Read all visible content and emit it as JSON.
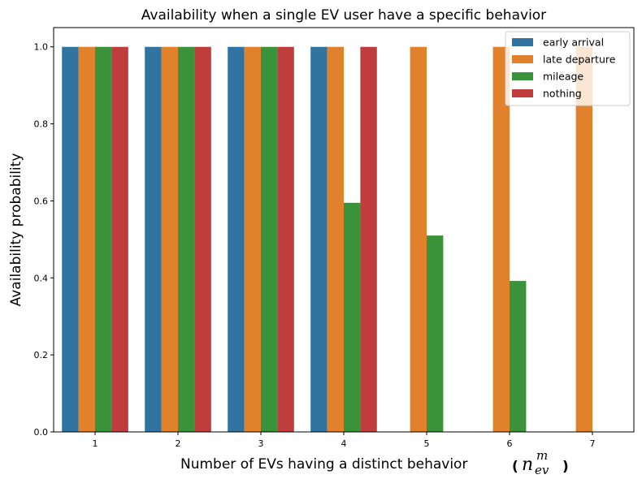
{
  "chart_data": {
    "type": "bar",
    "title": "Availability when a single EV user have a specific behavior",
    "xlabel": "Number of EVs having a distinct behavior",
    "xlabel_math": {
      "open": "(",
      "base": "n",
      "sup": "m",
      "sub": "ev",
      "close": ")"
    },
    "ylabel": "Availability probability",
    "categories": [
      "1",
      "2",
      "3",
      "4",
      "5",
      "6",
      "7"
    ],
    "ylim": [
      0,
      1.05
    ],
    "yticks": [
      "0.0",
      "0.2",
      "0.4",
      "0.6",
      "0.8",
      "1.0"
    ],
    "legend_position": "top-right",
    "grid": false,
    "series": [
      {
        "name": "early arrival",
        "color": "#3274a1",
        "values": [
          1.0,
          1.0,
          1.0,
          1.0,
          null,
          null,
          null
        ]
      },
      {
        "name": "late departure",
        "color": "#e1812c",
        "values": [
          1.0,
          1.0,
          1.0,
          1.0,
          1.0,
          1.0,
          1.0
        ]
      },
      {
        "name": "mileage",
        "color": "#3a923a",
        "values": [
          1.0,
          1.0,
          1.0,
          0.595,
          0.51,
          0.392,
          null
        ]
      },
      {
        "name": "nothing",
        "color": "#c03d3e",
        "values": [
          1.0,
          1.0,
          1.0,
          1.0,
          null,
          null,
          null
        ]
      }
    ]
  }
}
